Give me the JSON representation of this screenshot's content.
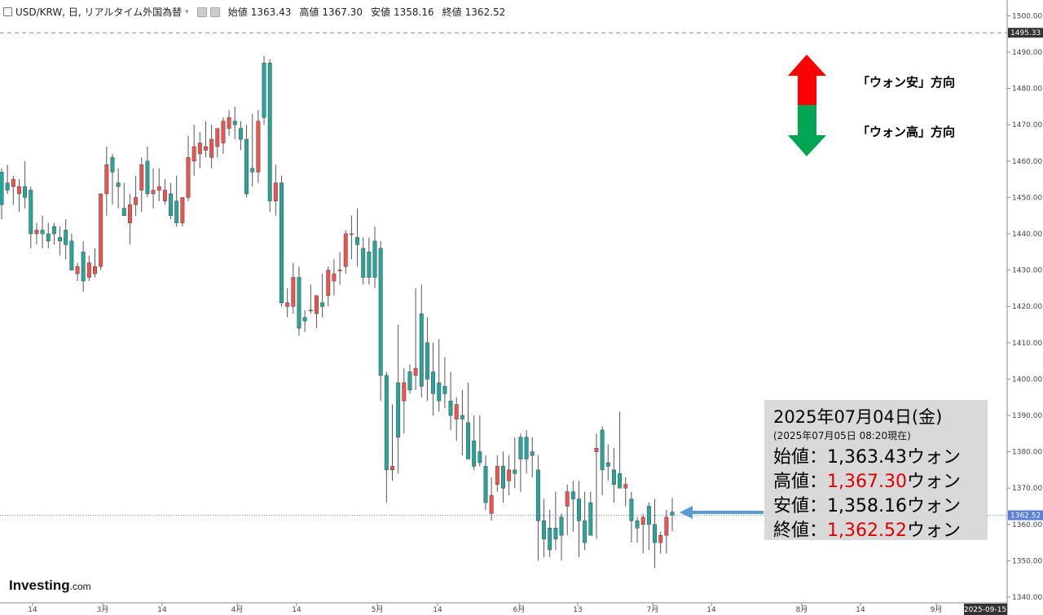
{
  "header": {
    "symbol": "USD/KRW, 日, リアルタイム外国為替",
    "open_label": "始値",
    "open": "1363.43",
    "high_label": "高値",
    "high": "1367.30",
    "low_label": "安値",
    "low": "1358.16",
    "close_label": "終値",
    "close": "1362.52"
  },
  "info_box": {
    "date": "2025年07月04日(金)",
    "as_of": "(2025年07月05日 08:20現在)",
    "open_label": "始値：",
    "open": "1,363.43",
    "high_label": "高値：",
    "high": "1,367.30",
    "low_label": "安値：",
    "low": "1,358.16",
    "close_label": "終値：",
    "close": "1,362.52",
    "unit": "ウォン"
  },
  "legend": {
    "up_label": "「ウォン安」方向",
    "down_label": "「ウォン高」方向"
  },
  "logo": {
    "name": "Investing",
    "suffix": ".com"
  },
  "colors": {
    "up": "#ef5350",
    "down": "#26a69a",
    "last_price_tag": "#5b7fd6",
    "arrow_blue": "#5b9bd5",
    "legend_red": "#ff0000",
    "legend_green": "#00a651"
  },
  "chart_data": {
    "type": "candlestick",
    "ylim": [
      1337,
      1505
    ],
    "y_ticks": [
      "1340.00",
      "1350.00",
      "1360.00",
      "1370.00",
      "1380.00",
      "1390.00",
      "1400.00",
      "1410.00",
      "1420.00",
      "1430.00",
      "1440.00",
      "1450.00",
      "1460.00",
      "1470.00",
      "1480.00",
      "1490.00",
      "1500.00"
    ],
    "price_labels": {
      "dashed_level": "1495.33",
      "last_price": "1362.52"
    },
    "dashed_level": 1495.33,
    "last_price": 1362.52,
    "x_ticks": [
      "14",
      "3月",
      "14",
      "4月",
      "14",
      "5月",
      "14",
      "6月",
      "13",
      "7月",
      "14",
      "8月",
      "14",
      "9月",
      "2025-09-15"
    ],
    "candles": [
      [
        1457,
        1458,
        1444,
        1448
      ],
      [
        1454,
        1459,
        1451,
        1452
      ],
      [
        1453,
        1456,
        1448,
        1455
      ],
      [
        1451,
        1455,
        1446,
        1453
      ],
      [
        1453,
        1460,
        1447,
        1450
      ],
      [
        1452,
        1453,
        1436,
        1440
      ],
      [
        1440,
        1443,
        1437,
        1441
      ],
      [
        1441,
        1445,
        1436,
        1440
      ],
      [
        1440,
        1443,
        1436,
        1438
      ],
      [
        1442,
        1443,
        1437,
        1440
      ],
      [
        1439,
        1442,
        1434,
        1438
      ],
      [
        1441,
        1444,
        1433,
        1437
      ],
      [
        1438,
        1440,
        1430,
        1430
      ],
      [
        1429,
        1432,
        1427,
        1431
      ],
      [
        1435,
        1438,
        1424,
        1427
      ],
      [
        1428,
        1434,
        1427,
        1432
      ],
      [
        1429,
        1436,
        1428,
        1431
      ],
      [
        1431,
        1451,
        1430,
        1451
      ],
      [
        1451,
        1464,
        1445,
        1459
      ],
      [
        1461,
        1462,
        1448,
        1457
      ],
      [
        1454,
        1458,
        1447,
        1453
      ],
      [
        1447,
        1454,
        1446,
        1445
      ],
      [
        1443,
        1451,
        1437,
        1448
      ],
      [
        1448,
        1456,
        1445,
        1450
      ],
      [
        1452,
        1461,
        1446,
        1459
      ],
      [
        1460,
        1464,
        1450,
        1451
      ],
      [
        1451,
        1458,
        1447,
        1452
      ],
      [
        1452,
        1458,
        1449,
        1453
      ],
      [
        1449,
        1455,
        1448,
        1452
      ],
      [
        1451,
        1454,
        1444,
        1445
      ],
      [
        1449,
        1456,
        1442,
        1443
      ],
      [
        1443,
        1450,
        1442,
        1450
      ],
      [
        1450,
        1467,
        1449,
        1461
      ],
      [
        1460,
        1470,
        1456,
        1464
      ],
      [
        1462,
        1468,
        1458,
        1465
      ],
      [
        1463,
        1471,
        1461,
        1464
      ],
      [
        1461,
        1470,
        1458,
        1466
      ],
      [
        1464,
        1468,
        1461,
        1469
      ],
      [
        1465,
        1472,
        1462,
        1471
      ],
      [
        1469,
        1474,
        1467,
        1472
      ],
      [
        1471,
        1475,
        1466,
        1470
      ],
      [
        1469,
        1471,
        1463,
        1466
      ],
      [
        1466,
        1470,
        1450,
        1451
      ],
      [
        1458,
        1473,
        1453,
        1457
      ],
      [
        1457,
        1474,
        1454,
        1471
      ],
      [
        1487,
        1489,
        1470,
        1472
      ],
      [
        1487,
        1488,
        1446,
        1449
      ],
      [
        1449,
        1459,
        1445,
        1454
      ],
      [
        1454,
        1456,
        1420,
        1421
      ],
      [
        1420,
        1425,
        1417,
        1421
      ],
      [
        1420,
        1432,
        1418,
        1428
      ],
      [
        1428,
        1431,
        1412,
        1414
      ],
      [
        1417,
        1419,
        1413,
        1416
      ],
      [
        1419,
        1426,
        1418,
        1419
      ],
      [
        1418,
        1422,
        1414,
        1423
      ],
      [
        1421,
        1429,
        1417,
        1420
      ],
      [
        1423,
        1431,
        1420,
        1430
      ],
      [
        1427,
        1433,
        1423,
        1429
      ],
      [
        1430,
        1435,
        1426,
        1430
      ],
      [
        1431,
        1441,
        1429,
        1440
      ],
      [
        1440,
        1445,
        1433,
        1440
      ],
      [
        1439,
        1447,
        1431,
        1437
      ],
      [
        1436,
        1439,
        1426,
        1428
      ],
      [
        1435,
        1439,
        1426,
        1428
      ],
      [
        1438,
        1442,
        1425,
        1428
      ],
      [
        1436,
        1438,
        1394,
        1401
      ],
      [
        1401,
        1402,
        1366,
        1375
      ],
      [
        1375,
        1393,
        1372,
        1376
      ],
      [
        1399,
        1415,
        1374,
        1384
      ],
      [
        1394,
        1403,
        1385,
        1399
      ],
      [
        1402,
        1404,
        1396,
        1397
      ],
      [
        1401,
        1425,
        1397,
        1403
      ],
      [
        1418,
        1426,
        1395,
        1398
      ],
      [
        1410,
        1417,
        1394,
        1400
      ],
      [
        1402,
        1410,
        1390,
        1396
      ],
      [
        1399,
        1411,
        1391,
        1394
      ],
      [
        1398,
        1406,
        1392,
        1396
      ],
      [
        1394,
        1402,
        1386,
        1390
      ],
      [
        1389,
        1395,
        1383,
        1393
      ],
      [
        1390,
        1397,
        1379,
        1389
      ],
      [
        1388,
        1399,
        1379,
        1378
      ],
      [
        1383,
        1390,
        1375,
        1376
      ],
      [
        1380,
        1390,
        1376,
        1377
      ],
      [
        1376,
        1379,
        1364,
        1366
      ],
      [
        1363,
        1373,
        1361,
        1368
      ],
      [
        1371,
        1379,
        1369,
        1376
      ],
      [
        1376,
        1380,
        1366,
        1370
      ],
      [
        1372,
        1379,
        1368,
        1375
      ],
      [
        1375,
        1384,
        1370,
        1374
      ],
      [
        1384,
        1385,
        1369,
        1378
      ],
      [
        1384,
        1386,
        1374,
        1378
      ],
      [
        1380,
        1384,
        1373,
        1379
      ],
      [
        1375,
        1379,
        1350,
        1361
      ],
      [
        1361,
        1367,
        1351,
        1356
      ],
      [
        1359,
        1364,
        1351,
        1353
      ],
      [
        1359,
        1369,
        1353,
        1356
      ],
      [
        1362,
        1363,
        1350,
        1357
      ],
      [
        1365,
        1371,
        1357,
        1369
      ],
      [
        1369,
        1372,
        1358,
        1367
      ],
      [
        1367,
        1372,
        1351,
        1361
      ],
      [
        1361,
        1369,
        1353,
        1355
      ],
      [
        1366,
        1369,
        1357,
        1357
      ],
      [
        1380,
        1385,
        1356,
        1381
      ],
      [
        1386,
        1387,
        1368,
        1375
      ],
      [
        1377,
        1382,
        1372,
        1376
      ],
      [
        1375,
        1381,
        1366,
        1371
      ],
      [
        1374,
        1391,
        1370,
        1370
      ],
      [
        1370,
        1373,
        1365,
        1371
      ],
      [
        1367,
        1369,
        1355,
        1361
      ],
      [
        1361,
        1362,
        1355,
        1359
      ],
      [
        1360,
        1363,
        1352,
        1362
      ],
      [
        1365,
        1366,
        1353,
        1360
      ],
      [
        1360,
        1367,
        1348,
        1355
      ],
      [
        1355,
        1358,
        1352,
        1357
      ],
      [
        1357,
        1364,
        1352,
        1362
      ],
      [
        1363.43,
        1367.3,
        1358.16,
        1362.52
      ]
    ]
  }
}
